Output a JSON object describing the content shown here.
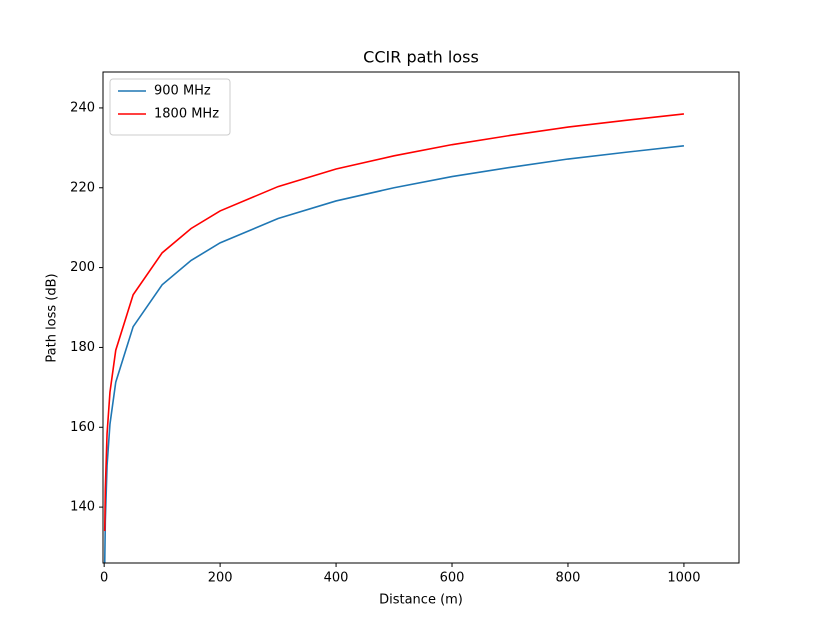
{
  "chart_data": {
    "type": "line",
    "title": "CCIR path loss",
    "x_label": "Distance (m)",
    "y_label": "Path loss (dB)",
    "x": [
      1,
      2,
      5,
      10,
      20,
      50,
      100,
      150,
      200,
      300,
      400,
      500,
      600,
      700,
      800,
      900,
      1000
    ],
    "series": [
      {
        "name": "900 MHz",
        "color": "#1f77b4",
        "values": [
          126.0,
          136.5,
          150.4,
          160.8,
          171.3,
          185.2,
          195.7,
          201.8,
          206.2,
          212.3,
          216.7,
          220.0,
          222.8,
          225.1,
          227.2,
          228.9,
          230.5
        ]
      },
      {
        "name": "1800 MHz",
        "color": "#ff0000",
        "values": [
          134.0,
          144.5,
          158.4,
          168.8,
          179.3,
          193.2,
          203.7,
          209.8,
          214.2,
          220.3,
          224.7,
          228.0,
          230.8,
          233.1,
          235.2,
          236.9,
          238.5
        ]
      }
    ],
    "xlim": [
      -2,
      1095
    ],
    "ylim": [
      126,
      249
    ],
    "xticks": [
      0,
      200,
      400,
      600,
      800,
      1000
    ],
    "yticks": [
      140,
      160,
      180,
      200,
      220,
      240
    ],
    "grid": false,
    "legend": "upper-left"
  }
}
